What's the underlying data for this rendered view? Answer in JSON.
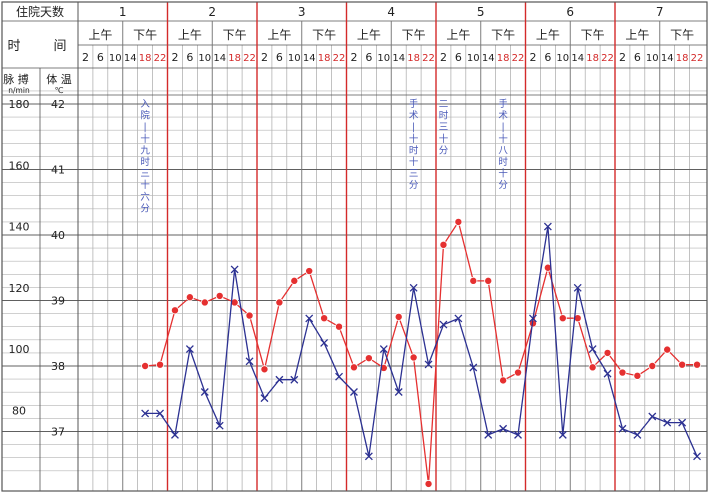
{
  "chart_data": {
    "type": "line",
    "header": {
      "days_label": "住院天数",
      "time_label_1": "时",
      "time_label_2": "间",
      "days": [
        "1",
        "2",
        "3",
        "4",
        "5",
        "6",
        "7"
      ],
      "am": "上午",
      "pm": "下午",
      "hours": [
        "2",
        "6",
        "10",
        "14",
        "18",
        "22"
      ]
    },
    "y_axes": {
      "pulse_label": "脉 搏",
      "pulse_unit": "n/min",
      "temp_label": "体 温",
      "temp_unit": "℃",
      "pulse_ticks": [
        "180",
        "160",
        "140",
        "120",
        "100",
        "80"
      ],
      "temp_ticks": [
        "42",
        "41",
        "40",
        "39",
        "38",
        "37"
      ],
      "temp_range": [
        36.2,
        42
      ],
      "pulse_range": [
        56,
        180
      ]
    },
    "annotations": [
      {
        "slot": 4,
        "text": "入院—十九时三十六分"
      },
      {
        "slot": 22,
        "text": "手术—十时十三分"
      },
      {
        "slot": 24,
        "text": "二时三十分"
      },
      {
        "slot": 28,
        "text": "手术—十八时十分"
      }
    ],
    "series": [
      {
        "metric": "temperature",
        "color": "#e53030",
        "marker": "dot",
        "points": [
          [
            4,
            38.0
          ],
          [
            5,
            38.02
          ],
          [
            6,
            38.85
          ],
          [
            7,
            39.05
          ],
          [
            8,
            38.97
          ],
          [
            9,
            39.07
          ],
          [
            10,
            38.97
          ],
          [
            11,
            38.77
          ],
          [
            12,
            37.95
          ],
          [
            13,
            38.97
          ],
          [
            14,
            39.3
          ],
          [
            15,
            39.45
          ],
          [
            16,
            38.73
          ],
          [
            17,
            38.6
          ],
          [
            18,
            37.98
          ],
          [
            19,
            38.12
          ],
          [
            20,
            37.97
          ],
          [
            21,
            38.75
          ],
          [
            22,
            38.13
          ],
          [
            23,
            36.2
          ],
          [
            24,
            39.85
          ],
          [
            25,
            40.2
          ],
          [
            26,
            39.3
          ],
          [
            27,
            39.3
          ],
          [
            28,
            37.78
          ],
          [
            29,
            37.9
          ],
          [
            30,
            38.65
          ],
          [
            31,
            39.5
          ],
          [
            32,
            38.73
          ],
          [
            33,
            38.73
          ],
          [
            34,
            37.98
          ],
          [
            35,
            38.2
          ],
          [
            36,
            37.9
          ],
          [
            37,
            37.85
          ],
          [
            38,
            38.0
          ],
          [
            39,
            38.25
          ],
          [
            40,
            38.02
          ],
          [
            41,
            38.02
          ]
        ]
      },
      {
        "metric": "pulse",
        "color": "#2c3192",
        "marker": "x",
        "points": [
          [
            4,
            79
          ],
          [
            5,
            79
          ],
          [
            6,
            72
          ],
          [
            7,
            100
          ],
          [
            8,
            86
          ],
          [
            9,
            75
          ],
          [
            10,
            126
          ],
          [
            11,
            96
          ],
          [
            12,
            84
          ],
          [
            13,
            90
          ],
          [
            14,
            90
          ],
          [
            15,
            110
          ],
          [
            16,
            102
          ],
          [
            17,
            91
          ],
          [
            18,
            86
          ],
          [
            19,
            65
          ],
          [
            20,
            100
          ],
          [
            21,
            86
          ],
          [
            22,
            120
          ],
          [
            23,
            95
          ],
          [
            24,
            108
          ],
          [
            25,
            110
          ],
          [
            26,
            94
          ],
          [
            27,
            72
          ],
          [
            28,
            74
          ],
          [
            29,
            72
          ],
          [
            30,
            110
          ],
          [
            31,
            140
          ],
          [
            32,
            72
          ],
          [
            33,
            120
          ],
          [
            34,
            100
          ],
          [
            35,
            92
          ],
          [
            36,
            74
          ],
          [
            37,
            72
          ],
          [
            38,
            78
          ],
          [
            39,
            76
          ],
          [
            40,
            76
          ],
          [
            41,
            65
          ]
        ]
      }
    ]
  }
}
